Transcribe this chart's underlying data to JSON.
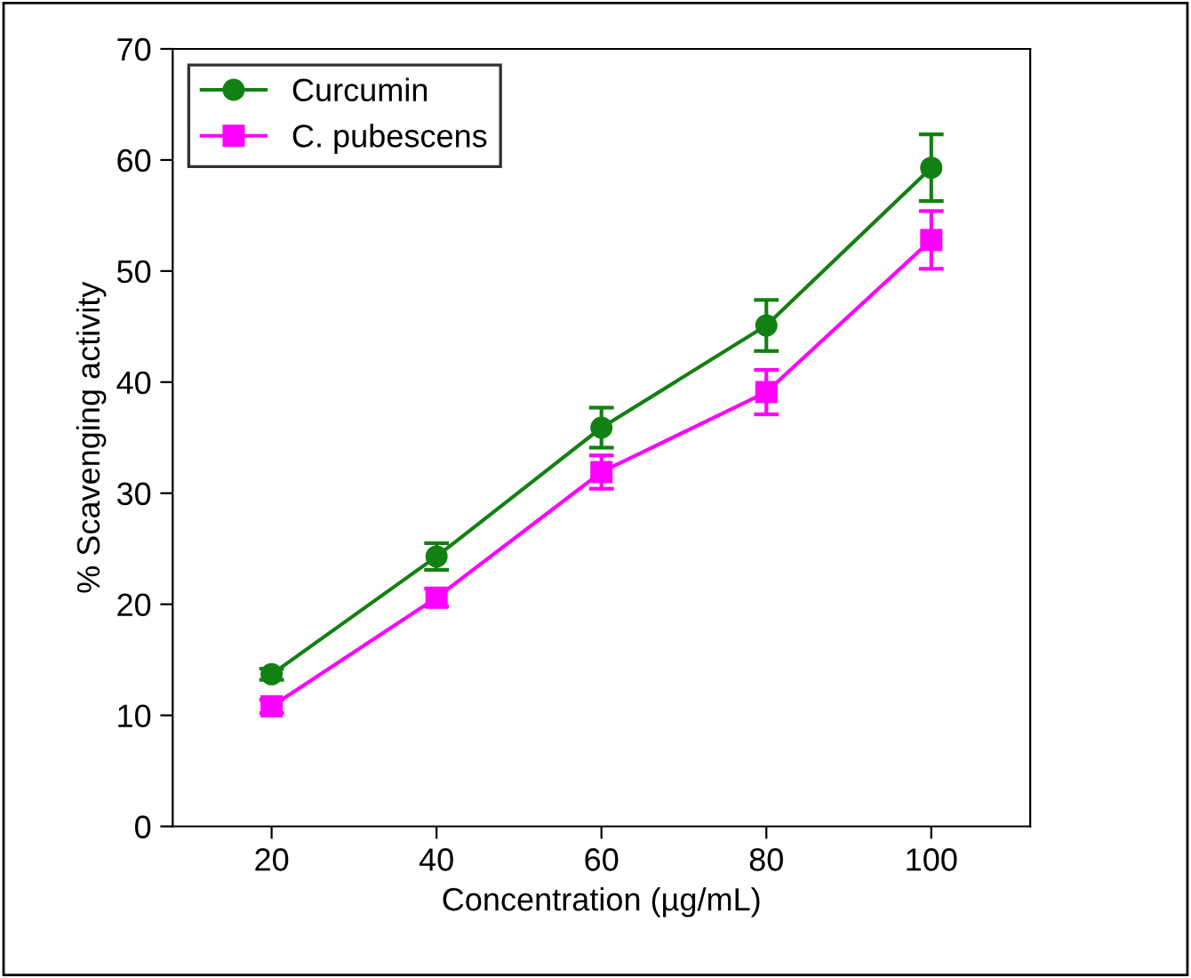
{
  "chart_data": {
    "type": "line",
    "xlabel": "Concentration (µg/mL)",
    "ylabel": "% Scavenging activity",
    "x": [
      20,
      40,
      60,
      80,
      100
    ],
    "series": [
      {
        "name": "Curcumin",
        "color": "#138013",
        "marker": "circle",
        "values": [
          13.7,
          24.3,
          35.9,
          45.1,
          59.3
        ],
        "errors": [
          0.5,
          1.2,
          1.8,
          2.3,
          3.0
        ]
      },
      {
        "name": "C. pubescens",
        "color": "#ff00ff",
        "marker": "square",
        "values": [
          10.8,
          20.6,
          31.9,
          39.1,
          52.8
        ],
        "errors": [
          0.6,
          0.8,
          1.5,
          2.0,
          2.6
        ]
      }
    ],
    "xlim": [
      8,
      112
    ],
    "xticks": [
      20,
      40,
      60,
      80,
      100
    ],
    "ylim": [
      0,
      70
    ],
    "yticks": [
      0,
      10,
      20,
      30,
      40,
      50,
      60,
      70
    ],
    "grid": false,
    "legend": "top left",
    "line_style": "solid"
  }
}
